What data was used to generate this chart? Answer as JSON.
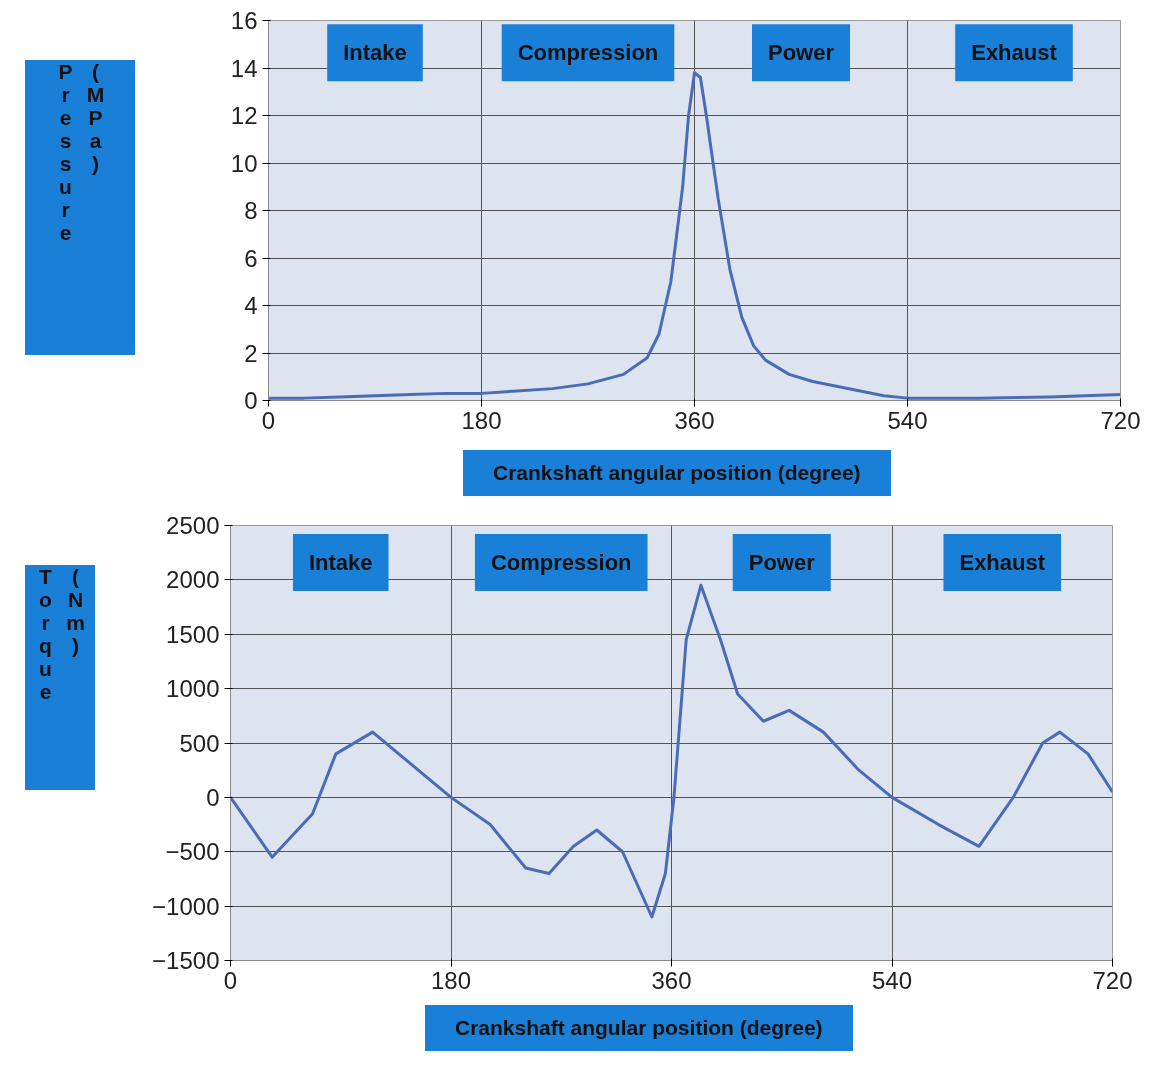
{
  "chart_data": [
    {
      "type": "line",
      "ylabel": "Pressure (MPa)",
      "xlabel": "Crankshaft angular position (degree)",
      "x": [
        0,
        30,
        60,
        90,
        120,
        150,
        180,
        210,
        240,
        270,
        300,
        320,
        330,
        340,
        350,
        355,
        360,
        365,
        370,
        380,
        390,
        400,
        410,
        420,
        440,
        460,
        480,
        500,
        520,
        540,
        600,
        660,
        690,
        720
      ],
      "series": [
        {
          "color": "#4a6cb8",
          "values": [
            0.1,
            0.1,
            0.15,
            0.2,
            0.25,
            0.3,
            0.3,
            0.4,
            0.5,
            0.7,
            1.1,
            1.8,
            2.8,
            5,
            9,
            12,
            13.8,
            13.6,
            12,
            8.5,
            5.5,
            3.5,
            2.3,
            1.7,
            1.1,
            0.8,
            0.6,
            0.4,
            0.2,
            0.1,
            0.1,
            0.15,
            0.2,
            0.25
          ]
        }
      ],
      "xlim": [
        0,
        720
      ],
      "xticks": [
        0,
        180,
        360,
        540,
        720
      ],
      "ylim": [
        0,
        16
      ],
      "yticks": [
        0,
        2,
        4,
        6,
        8,
        10,
        12,
        14,
        16
      ],
      "grid": true,
      "marker": "none",
      "line_style": "solid",
      "annotations": [
        "Intake",
        "Compression",
        "Power",
        "Exhaust"
      ]
    },
    {
      "type": "line",
      "ylabel": "Torque (Nm)",
      "xlabel": "Crankshaft angular position (degree)",
      "x": [
        0,
        34,
        67,
        86,
        116,
        180,
        212,
        241,
        260,
        280,
        299,
        320,
        344,
        355,
        362,
        372,
        384,
        400,
        414,
        435,
        456,
        484,
        513,
        540,
        578,
        611,
        639,
        663,
        677,
        700,
        720
      ],
      "series": [
        {
          "color": "#4a6cb8",
          "values": [
            0,
            -550,
            -150,
            400,
            600,
            0,
            -250,
            -650,
            -700,
            -450,
            -300,
            -500,
            -1100,
            -700,
            0,
            1450,
            1950,
            1450,
            950,
            700,
            800,
            600,
            250,
            0,
            -250,
            -450,
            0,
            500,
            600,
            400,
            50
          ]
        }
      ],
      "xlim": [
        0,
        720
      ],
      "xticks": [
        0,
        180,
        360,
        540,
        720
      ],
      "ylim": [
        -1500,
        2500
      ],
      "yticks": [
        -1500,
        -1000,
        -500,
        0,
        500,
        1000,
        1500,
        2000,
        2500
      ],
      "grid": true,
      "marker": "none",
      "line_style": "solid",
      "annotations": [
        "Intake",
        "Compression",
        "Power",
        "Exhaust"
      ]
    }
  ]
}
